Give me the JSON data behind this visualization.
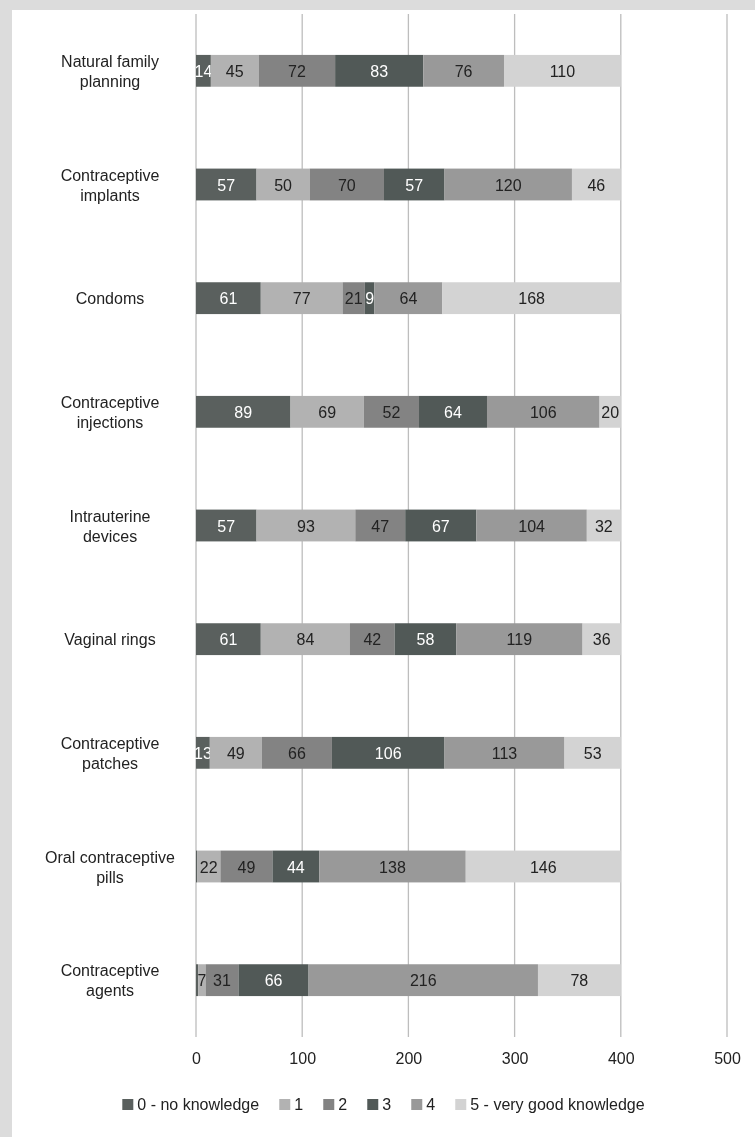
{
  "chart_data": {
    "type": "bar",
    "orientation": "horizontal",
    "stacked": true,
    "categories": [
      "Natural family\nplanning",
      "Contraceptive\nimplants",
      "Condoms",
      "Contraceptive\ninjections",
      "Intrauterine\ndevices",
      "Vaginal rings",
      "Contraceptive\npatches",
      "Oral contraceptive\npills",
      "Contraceptive\nagents"
    ],
    "series": [
      {
        "name": "0 - no knowledge",
        "color": "#5a605e",
        "values": [
          14,
          57,
          61,
          89,
          57,
          61,
          13,
          1,
          2
        ],
        "value_labels": [
          "14",
          "57",
          "61",
          "89",
          "57",
          "61",
          "13",
          null,
          null
        ]
      },
      {
        "name": "1",
        "color": "#b2b2b2",
        "values": [
          45,
          50,
          77,
          69,
          93,
          84,
          49,
          22,
          7
        ],
        "value_labels": [
          "45",
          "50",
          "77",
          "69",
          "93",
          "84",
          "49",
          "22",
          "7"
        ]
      },
      {
        "name": "2",
        "color": "#838383",
        "values": [
          72,
          70,
          21,
          52,
          47,
          42,
          66,
          49,
          31
        ],
        "value_labels": [
          "72",
          "70",
          "21",
          "52",
          "47",
          "42",
          "66",
          "49",
          "31"
        ]
      },
      {
        "name": "3",
        "color": "#515957",
        "values": [
          83,
          57,
          9,
          64,
          67,
          58,
          106,
          44,
          66
        ],
        "value_labels": [
          "83",
          "57",
          "9",
          "64",
          "67",
          "58",
          "106",
          "44",
          "66"
        ]
      },
      {
        "name": "4",
        "color": "#999999",
        "values": [
          76,
          120,
          64,
          106,
          104,
          119,
          113,
          138,
          216
        ],
        "value_labels": [
          "76",
          "120",
          "64",
          "106",
          "104",
          "119",
          "113",
          "138",
          "216"
        ]
      },
      {
        "name": "5 - very good knowledge",
        "color": "#d3d3d3",
        "values": [
          110,
          46,
          168,
          20,
          32,
          36,
          53,
          146,
          78
        ],
        "value_labels": [
          "110",
          "46",
          "168",
          "20",
          "32",
          "36",
          "53",
          "146",
          "78"
        ]
      }
    ],
    "xlim": [
      0,
      500
    ],
    "xticks": [
      0,
      100,
      200,
      300,
      400,
      500
    ],
    "grid": "x",
    "legend": "bottom"
  }
}
